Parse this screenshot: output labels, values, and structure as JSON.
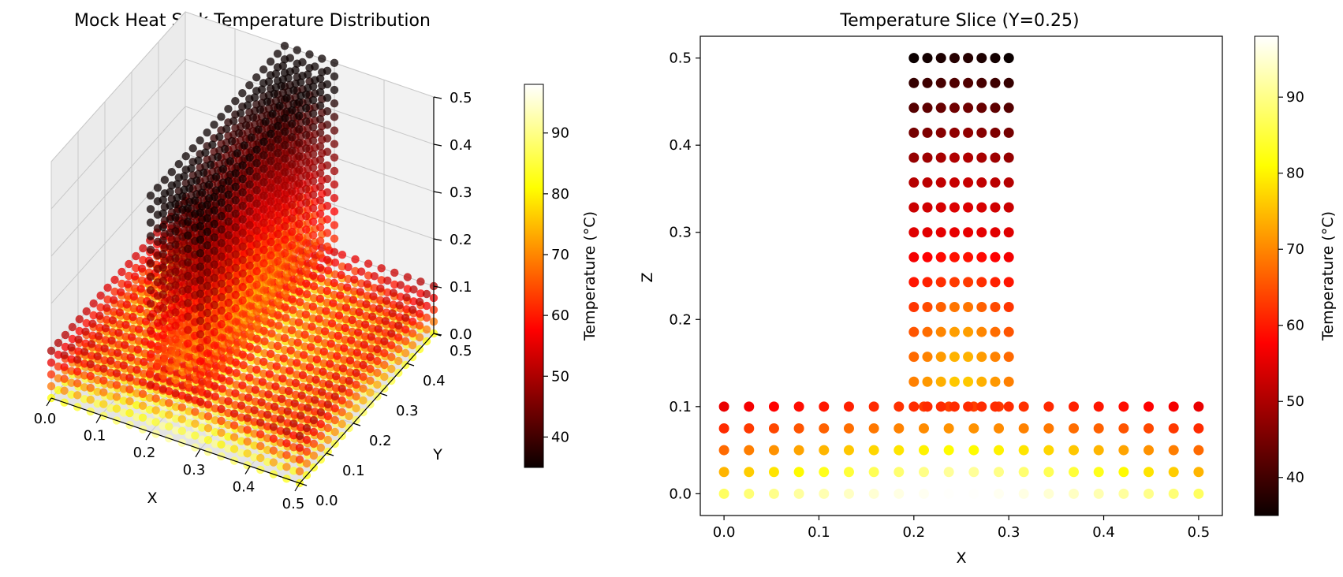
{
  "chart_data": [
    {
      "type": "scatter3d",
      "title": "Mock Heat Sink Temperature Distribution",
      "xlabel": "X",
      "ylabel": "Y",
      "zlabel": "",
      "xlim": [
        0,
        0.5
      ],
      "ylim": [
        0,
        0.5
      ],
      "zlim": [
        0,
        0.5
      ],
      "xticks": [
        "0.0",
        "0.1",
        "0.2",
        "0.3",
        "0.4",
        "0.5"
      ],
      "yticks": [
        "0.0",
        "0.1",
        "0.2",
        "0.3",
        "0.4",
        "0.5"
      ],
      "zticks": [
        "0.0",
        "0.1",
        "0.2",
        "0.3",
        "0.4",
        "0.5"
      ],
      "grid": true,
      "colormap": "hot",
      "colorbar": {
        "label": "Temperature (°C)",
        "range": [
          35,
          98
        ],
        "ticks": [
          "40",
          "50",
          "60",
          "70",
          "80",
          "90"
        ]
      },
      "geometry": {
        "base": {
          "x": [
            0,
            0.5
          ],
          "y": [
            0,
            0.5
          ],
          "z": [
            0,
            0.1
          ],
          "x_points": 20,
          "y_points": 20,
          "z_points": 5
        },
        "fin": {
          "x": [
            0.2,
            0.3
          ],
          "y": [
            0,
            0.5
          ],
          "z": [
            0.1,
            0.5
          ],
          "x_points": 5,
          "y_points": 20,
          "z_points": 15
        }
      }
    },
    {
      "type": "scatter",
      "title": "Temperature Slice (Y=0.25)",
      "xlabel": "X",
      "ylabel": "Z",
      "xlim": [
        -0.025,
        0.525
      ],
      "ylim": [
        -0.025,
        0.525
      ],
      "xticks": [
        "0.0",
        "0.1",
        "0.2",
        "0.3",
        "0.4",
        "0.5"
      ],
      "yticks": [
        "0.0",
        "0.1",
        "0.2",
        "0.3",
        "0.4",
        "0.5"
      ],
      "grid": false,
      "colormap": "hot",
      "colorbar": {
        "label": "Temperature (°C)",
        "range": [
          35,
          98
        ],
        "ticks": [
          "40",
          "50",
          "60",
          "70",
          "80",
          "90"
        ]
      },
      "base": {
        "x_points": 20,
        "x_range": [
          0,
          0.5
        ],
        "z": [
          0,
          0.025,
          0.05,
          0.075,
          0.1
        ],
        "row_temperatures_center": [
          98,
          92,
          82,
          72,
          64
        ],
        "row_temperatures_edge": [
          88,
          75,
          68,
          62,
          56
        ]
      },
      "fin": {
        "x_points": 8,
        "x_range": [
          0.2,
          0.3
        ],
        "z_points": 15,
        "z_range": [
          0.1,
          0.5
        ],
        "row_temperatures_center": [
          62,
          78,
          76,
          74,
          70,
          64,
          60,
          56,
          55,
          53,
          51,
          48,
          45,
          42,
          38
        ],
        "row_temperatures_edge": [
          62,
          70,
          68,
          66,
          63,
          60,
          57,
          55,
          53,
          51,
          48,
          45,
          42,
          39,
          35
        ]
      }
    }
  ]
}
